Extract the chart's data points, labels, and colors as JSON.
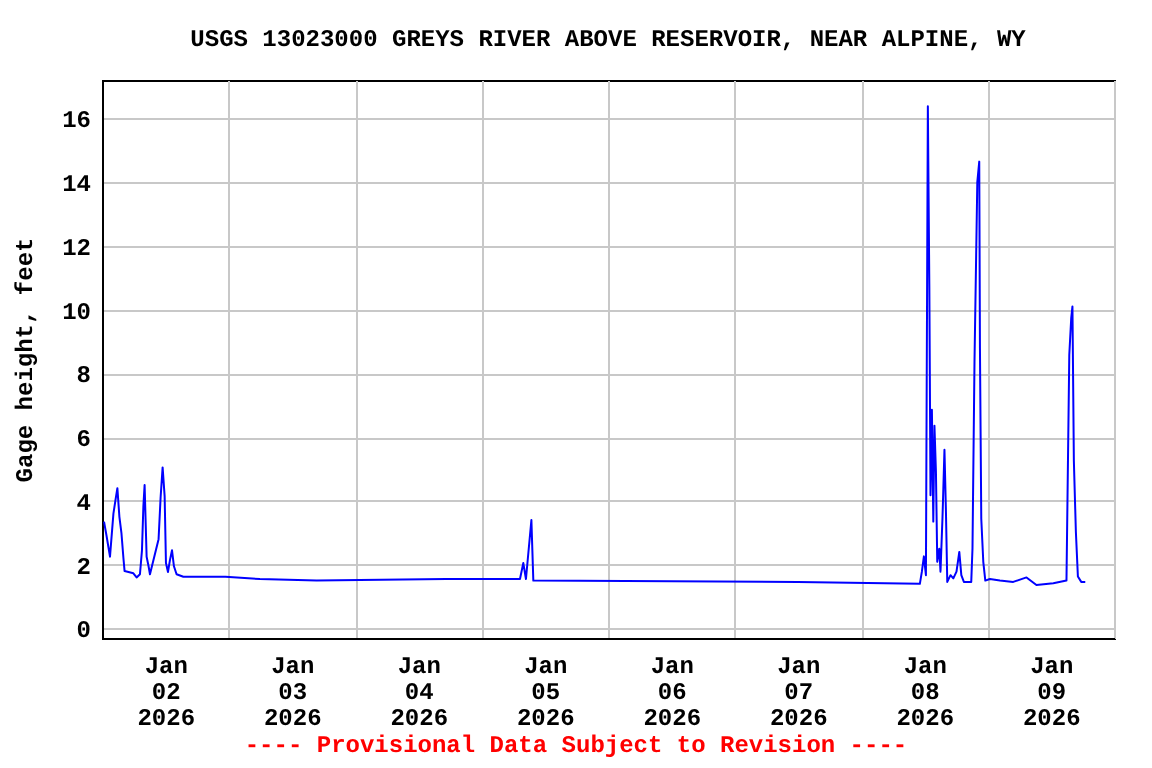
{
  "chart_data": {
    "type": "line",
    "title": "USGS 13023000 GREYS RIVER ABOVE RESERVOIR, NEAR ALPINE, WY",
    "ylabel": "Gage height, feet",
    "annotations": [
      "---- Provisional Data Subject to Revision ----"
    ],
    "xlim": [
      "2026-01-02T00:00",
      "2026-01-10T00:00"
    ],
    "xticks": [
      {
        "value": "2026-01-02T00:00",
        "label": null
      },
      {
        "value": "2026-01-02T12:00",
        "label": "Jan\n02\n2026"
      },
      {
        "value": "2026-01-03T00:00",
        "label": null
      },
      {
        "value": "2026-01-03T12:00",
        "label": "Jan\n03\n2026"
      },
      {
        "value": "2026-01-04T00:00",
        "label": null
      },
      {
        "value": "2026-01-04T12:00",
        "label": "Jan\n04\n2026"
      },
      {
        "value": "2026-01-05T00:00",
        "label": null
      },
      {
        "value": "2026-01-05T12:00",
        "label": "Jan\n05\n2026"
      },
      {
        "value": "2026-01-06T00:00",
        "label": null
      },
      {
        "value": "2026-01-06T12:00",
        "label": "Jan\n06\n2026"
      },
      {
        "value": "2026-01-07T00:00",
        "label": null
      },
      {
        "value": "2026-01-07T12:00",
        "label": "Jan\n07\n2026"
      },
      {
        "value": "2026-01-08T00:00",
        "label": null
      },
      {
        "value": "2026-01-08T12:00",
        "label": "Jan\n08\n2026"
      },
      {
        "value": "2026-01-09T00:00",
        "label": null
      },
      {
        "value": "2026-01-09T12:00",
        "label": "Jan\n09\n2026"
      },
      {
        "value": "2026-01-10T00:00",
        "label": null
      }
    ],
    "ylim": [
      -0.3,
      17.2
    ],
    "yticks": [
      0,
      2,
      4,
      6,
      8,
      10,
      12,
      14,
      16
    ],
    "grid": true,
    "marker": "none",
    "line_style": "solid",
    "series": [
      {
        "color": "#0000ff",
        "x": [
          "2026-01-02T00:23",
          "2026-01-02T00:52",
          "2026-01-02T01:31",
          "2026-01-02T02:10",
          "2026-01-02T02:32",
          "2026-01-02T02:55",
          "2026-01-02T03:18",
          "2026-01-02T03:41",
          "2026-01-02T04:04",
          "2026-01-02T04:17",
          "2026-01-02T05:57",
          "2026-01-02T06:34",
          "2026-01-02T07:12",
          "2026-01-02T07:35",
          "2026-01-02T07:51",
          "2026-01-02T08:05",
          "2026-01-02T08:28",
          "2026-01-02T08:50",
          "2026-01-02T09:06",
          "2026-01-02T10:44",
          "2026-01-02T11:07",
          "2026-01-02T11:30",
          "2026-01-02T11:53",
          "2026-01-02T12:08",
          "2026-01-02T12:31",
          "2026-01-02T12:54",
          "2026-01-02T13:17",
          "2026-01-02T13:39",
          "2026-01-02T14:09",
          "2026-01-02T15:26",
          "2026-01-02T23:25",
          "2026-01-03T05:58",
          "2026-01-03T16:43",
          "2026-01-04T17:15",
          "2026-01-05T07:18",
          "2026-01-05T07:56",
          "2026-01-05T08:26",
          "2026-01-05T09:28",
          "2026-01-05T09:50",
          "2026-01-06T12:00",
          "2026-01-07T12:00",
          "2026-01-08T11:10",
          "2026-01-08T11:33",
          "2026-01-08T11:56",
          "2026-01-08T12:19",
          "2026-01-08T12:41",
          "2026-01-08T12:58",
          "2026-01-08T13:11",
          "2026-01-08T13:27",
          "2026-01-08T13:43",
          "2026-01-08T13:56",
          "2026-01-08T14:13",
          "2026-01-08T14:28",
          "2026-01-08T14:51",
          "2026-01-08T15:05",
          "2026-01-08T15:28",
          "2026-01-08T15:50",
          "2026-01-08T16:07",
          "2026-01-08T16:22",
          "2026-01-08T16:59",
          "2026-01-08T17:31",
          "2026-01-08T18:07",
          "2026-01-08T18:39",
          "2026-01-08T19:02",
          "2026-01-08T19:31",
          "2026-01-08T20:55",
          "2026-01-08T21:09",
          "2026-01-08T21:32",
          "2026-01-08T22:04",
          "2026-01-08T22:26",
          "2026-01-08T22:34",
          "2026-01-08T22:49",
          "2026-01-08T23:12",
          "2026-01-08T23:35",
          "2026-01-09T00:27",
          "2026-01-09T02:21",
          "2026-01-09T04:53",
          "2026-01-09T07:24",
          "2026-01-09T09:17",
          "2026-01-09T12:29",
          "2026-01-09T14:59",
          "2026-01-09T15:31",
          "2026-01-09T15:53",
          "2026-01-09T16:07",
          "2026-01-09T16:23",
          "2026-01-09T16:46",
          "2026-01-09T17:09",
          "2026-01-09T17:47",
          "2026-01-09T18:33"
        ],
        "values": [
          3.35,
          2.9,
          2.25,
          3.6,
          4.0,
          4.4,
          3.5,
          3.0,
          2.2,
          1.8,
          1.73,
          1.6,
          1.7,
          2.45,
          3.83,
          4.5,
          2.25,
          1.95,
          1.7,
          2.8,
          4.1,
          5.05,
          4.15,
          2.05,
          1.77,
          2.15,
          2.45,
          1.95,
          1.7,
          1.62,
          1.62,
          1.55,
          1.5,
          1.55,
          1.55,
          2.05,
          1.55,
          3.4,
          1.5,
          1.48,
          1.46,
          1.4,
          1.78,
          2.26,
          1.67,
          16.38,
          10.67,
          4.18,
          6.86,
          3.35,
          6.36,
          4.92,
          2.09,
          2.5,
          1.78,
          3.5,
          5.6,
          3.66,
          1.46,
          1.67,
          1.57,
          1.78,
          2.4,
          1.67,
          1.46,
          1.46,
          2.5,
          8.37,
          14.0,
          14.64,
          8.79,
          3.45,
          2.09,
          1.5,
          1.55,
          1.5,
          1.46,
          1.6,
          1.36,
          1.42,
          1.5,
          8.58,
          9.73,
          10.1,
          5.27,
          3.03,
          1.63,
          1.46,
          1.46
        ]
      }
    ]
  }
}
